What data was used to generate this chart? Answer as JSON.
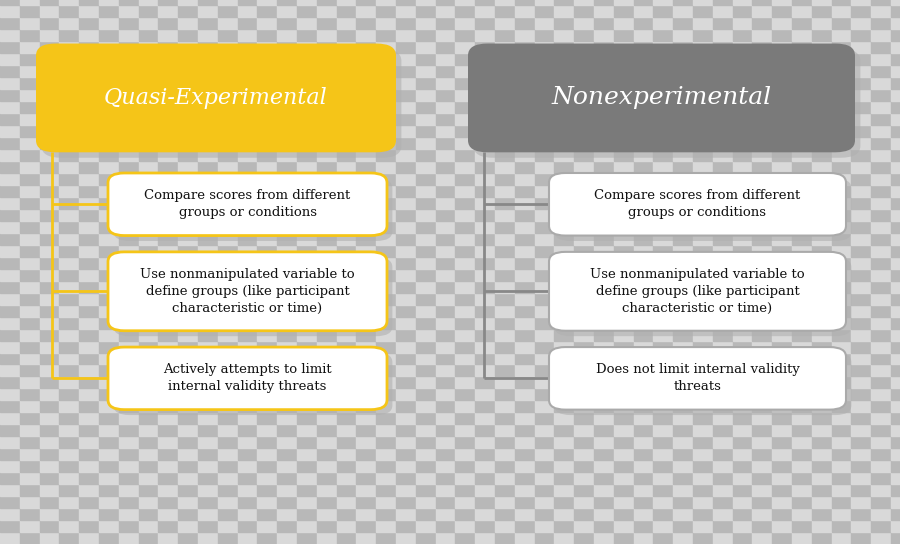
{
  "left_title": "Quasi-Experimental",
  "left_title_bg": "#F5C518",
  "left_title_text_color": "#ffffff",
  "left_items": [
    "Compare scores from different\ngroups or conditions",
    "Use nonmanipulated variable to\ndefine groups (like participant\ncharacteristic or time)",
    "Actively attempts to limit\ninternal validity threats"
  ],
  "left_item_bg": "#ffffff",
  "left_item_border": "#F5C518",
  "left_item_text_color": "#111111",
  "right_title": "Nonexperimental",
  "right_title_bg": "#7a7a7a",
  "right_title_text_color": "#ffffff",
  "right_items": [
    "Compare scores from different\ngroups or conditions",
    "Use nonmanipulated variable to\ndefine groups (like participant\ncharacteristic or time)",
    "Does not limit internal validity\nthreats"
  ],
  "right_item_bg": "#ffffff",
  "right_item_border": "#aaaaaa",
  "right_item_text_color": "#111111",
  "connector_color_left": "#F5C518",
  "connector_color_right": "#888888",
  "checker_light": "#d9d9d9",
  "checker_dark": "#b8b8b8",
  "figsize": [
    9.0,
    5.44
  ],
  "dpi": 100
}
